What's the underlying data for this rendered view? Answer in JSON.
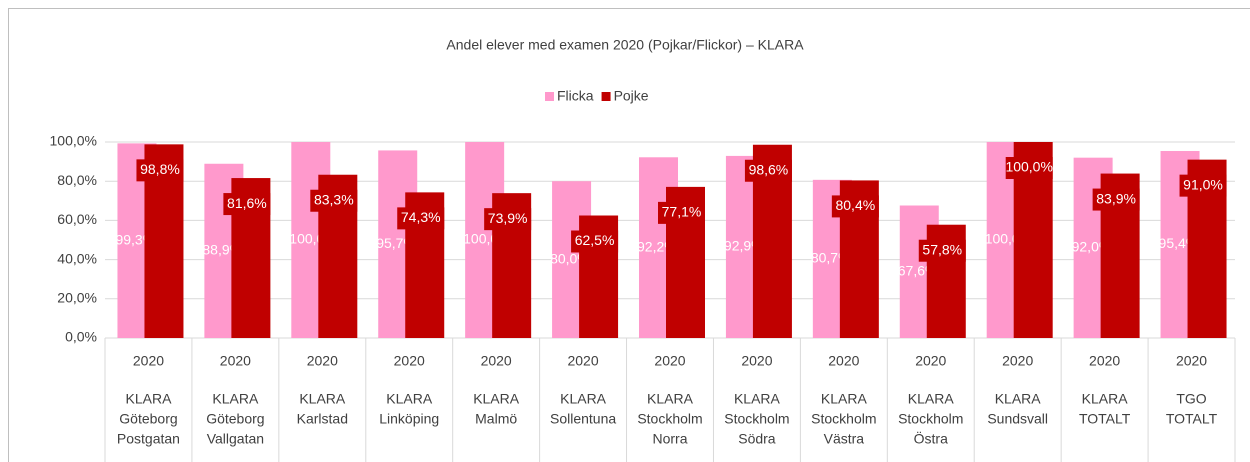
{
  "chart_data": {
    "type": "bar",
    "title": "Andel elever med examen 2020 (Pojkar/Flickor) – KLARA",
    "years": [
      "2020",
      "2020",
      "2020",
      "2020",
      "2020",
      "2020",
      "2020",
      "2020",
      "2020",
      "2020",
      "2020",
      "2020",
      "2020"
    ],
    "categories": [
      [
        "KLARA",
        "Göteborg",
        "Postgatan"
      ],
      [
        "KLARA",
        "Göteborg",
        "Vallgatan"
      ],
      [
        "KLARA",
        "Karlstad"
      ],
      [
        "KLARA",
        "Linköping"
      ],
      [
        "KLARA",
        "Malmö"
      ],
      [
        "KLARA",
        "Sollentuna"
      ],
      [
        "KLARA",
        "Stockholm",
        "Norra"
      ],
      [
        "KLARA",
        "Stockholm",
        "Södra"
      ],
      [
        "KLARA",
        "Stockholm",
        "Västra"
      ],
      [
        "KLARA",
        "Stockholm",
        "Östra"
      ],
      [
        "KLARA",
        "Sundsvall"
      ],
      [
        "KLARA",
        "TOTALT"
      ],
      [
        "TGO",
        "TOTALT"
      ]
    ],
    "series": [
      {
        "name": "Flicka",
        "color": "#ff99cc",
        "values": [
          99.3,
          88.9,
          100.0,
          95.7,
          100.0,
          80.0,
          92.2,
          92.9,
          80.7,
          67.6,
          100.0,
          92.0,
          95.4
        ],
        "value_labels": [
          "99,3%",
          "88,9%",
          "100,0%",
          "95,7%",
          "100,0%",
          "80,0%",
          "92,2%",
          "92,9%",
          "80,7%",
          "67,6%",
          "100,0%",
          "92,0%",
          "95,4%"
        ]
      },
      {
        "name": "Pojke",
        "color": "#c00000",
        "values": [
          98.8,
          81.6,
          83.3,
          74.3,
          73.9,
          62.5,
          77.1,
          98.6,
          80.4,
          57.8,
          100.0,
          83.9,
          91.0
        ],
        "value_labels": [
          "98,8%",
          "81,6%",
          "83,3%",
          "74,3%",
          "73,9%",
          "62,5%",
          "77,1%",
          "98,6%",
          "80,4%",
          "57,8%",
          "100,0%",
          "83,9%",
          "91,0%"
        ]
      }
    ],
    "ylim": [
      0,
      100
    ],
    "yticks": [
      {
        "value": 0,
        "label": "0,0%"
      },
      {
        "value": 20,
        "label": "20,0%"
      },
      {
        "value": 40,
        "label": "40,0%"
      },
      {
        "value": 60,
        "label": "60,0%"
      },
      {
        "value": 80,
        "label": "80,0%"
      },
      {
        "value": 100,
        "label": "100,0%"
      }
    ],
    "grid": true,
    "legend": "top"
  }
}
